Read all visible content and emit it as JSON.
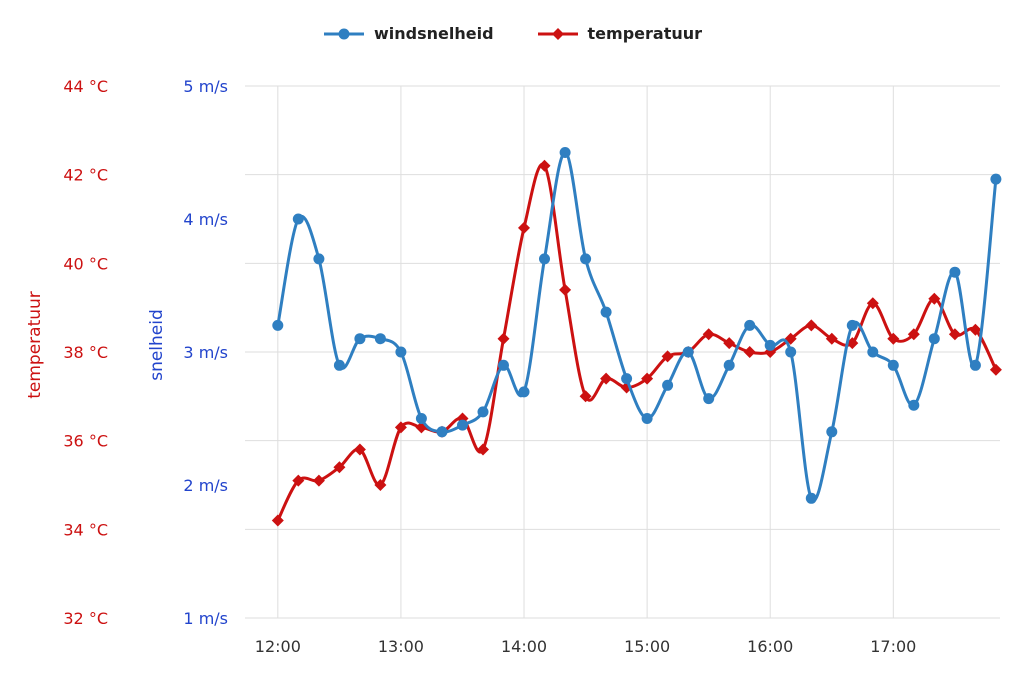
{
  "colors": {
    "background": "#ffffff",
    "grid": "#dedede",
    "x_label": "#333333",
    "legend_text": "#222222"
  },
  "chart_data": {
    "type": "line",
    "grid": true,
    "legend_position": "top-center",
    "x_axis": {
      "ticks": [
        "12:00",
        "13:00",
        "14:00",
        "15:00",
        "16:00",
        "17:00"
      ],
      "start_minutes": 720,
      "tick_interval_minutes": 60,
      "point_interval_minutes": 10
    },
    "y_axes": [
      {
        "id": "temp",
        "title": "temperatuur",
        "color": "#cc1111",
        "min": 32,
        "max": 44,
        "ticks": [
          44,
          42,
          40,
          38,
          36,
          34,
          32
        ],
        "tick_suffix": " °C"
      },
      {
        "id": "speed",
        "title": "snelheid",
        "color": "#2244cc",
        "min": 1,
        "max": 5,
        "ticks": [
          5,
          4,
          3,
          2,
          1
        ],
        "tick_suffix": " m/s"
      }
    ],
    "series": [
      {
        "name": "windsnelheid",
        "axis": "speed",
        "color": "#2f7fc1",
        "marker": "circle",
        "values": [
          3.2,
          4.0,
          3.7,
          2.9,
          3.1,
          3.1,
          3.0,
          2.5,
          2.4,
          2.45,
          2.55,
          2.9,
          2.7,
          3.7,
          4.5,
          3.7,
          3.3,
          2.8,
          2.5,
          2.75,
          3.0,
          2.65,
          2.9,
          3.2,
          3.05,
          3.0,
          1.9,
          2.4,
          3.2,
          3.0,
          2.9,
          2.6,
          3.1,
          3.6,
          2.9,
          4.3
        ]
      },
      {
        "name": "temperatuur",
        "axis": "temp",
        "color": "#cc1111",
        "marker": "diamond",
        "values": [
          34.2,
          35.1,
          35.1,
          35.4,
          35.8,
          35.0,
          36.3,
          36.3,
          36.2,
          36.5,
          35.8,
          38.3,
          40.8,
          42.2,
          39.4,
          37.0,
          37.4,
          37.2,
          37.4,
          37.9,
          38.0,
          38.4,
          38.2,
          38.0,
          38.0,
          38.3,
          38.6,
          38.3,
          38.2,
          39.1,
          38.3,
          38.4,
          39.2,
          38.4,
          38.5,
          37.6
        ]
      }
    ]
  }
}
